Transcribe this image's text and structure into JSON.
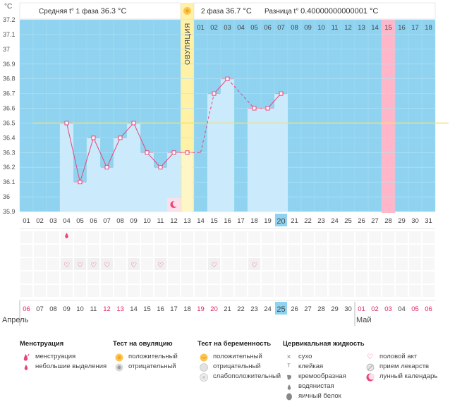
{
  "axis_unit": "°C",
  "header": {
    "phase1_label": "Средняя t° 1 фаза",
    "phase1_value": "36.3 °C",
    "phase2_label": "2 фаза",
    "phase2_value": "36.7 °C",
    "diff_label": "Разница t°",
    "diff_value": "0.40000000000001 °C"
  },
  "ovulation_label": "ОВУЛЯЦИЯ",
  "chart_data": {
    "type": "line",
    "ylabel": "°C",
    "ylim": [
      35.9,
      37.2
    ],
    "yticks": [
      "35.9",
      "36",
      "36.1",
      "36.2",
      "36.3",
      "36.4",
      "36.5",
      "36.6",
      "36.7",
      "36.8",
      "36.9",
      "37",
      "37.1",
      "37.2"
    ],
    "baseline": 36.5,
    "cycle_days": [
      "01",
      "02",
      "03",
      "04",
      "05",
      "06",
      "07",
      "08",
      "09",
      "10",
      "11",
      "12",
      "13",
      "14",
      "15",
      "16",
      "17",
      "18",
      "19",
      "20",
      "21",
      "22",
      "23",
      "24",
      "25",
      "26",
      "27",
      "28",
      "29",
      "30",
      "31"
    ],
    "phase2_days": [
      "01",
      "02",
      "03",
      "04",
      "05",
      "06",
      "07",
      "08",
      "09",
      "10",
      "11",
      "12",
      "13",
      "14",
      "15",
      "16",
      "17",
      "18"
    ],
    "highlight_cycle_day": "20",
    "ovulation_day": 13,
    "pink_day": 28,
    "temperatures": [
      null,
      null,
      null,
      36.5,
      36.1,
      36.4,
      36.2,
      36.4,
      36.5,
      36.3,
      36.2,
      36.3,
      36.3,
      null,
      36.7,
      36.8,
      null,
      36.6,
      36.6,
      36.7,
      null,
      null,
      null,
      null,
      null,
      null,
      null,
      null,
      null,
      null,
      null
    ],
    "dashed_segments": [
      [
        13,
        36.3,
        14,
        36.3
      ],
      [
        14,
        36.3,
        15,
        36.7
      ],
      [
        16,
        36.8,
        18,
        36.6
      ]
    ],
    "lunar_day": 12,
    "menstruation_small_day": 4,
    "intercourse_days": [
      4,
      5,
      6,
      7,
      9,
      11,
      15,
      18
    ],
    "dates": [
      "06",
      "07",
      "08",
      "09",
      "10",
      "11",
      "12",
      "13",
      "14",
      "15",
      "16",
      "17",
      "18",
      "19",
      "20",
      "21",
      "22",
      "23",
      "24",
      "25",
      "26",
      "27",
      "28",
      "29",
      "30",
      "01",
      "02",
      "03",
      "04",
      "05",
      "06"
    ],
    "red_dates_idx": [
      0,
      6,
      7,
      13,
      14,
      25,
      26,
      27,
      29,
      30
    ],
    "highlight_date": "25",
    "month_labels": [
      "Апрель",
      "Май"
    ]
  },
  "legend": {
    "menstruation": {
      "title": "Менструация",
      "items": [
        "менструация",
        "небольшие выделения"
      ]
    },
    "ovulation_test": {
      "title": "Тест на овуляцию",
      "items": [
        "положительный",
        "отрицательный"
      ]
    },
    "pregnancy_test": {
      "title": "Тест на беременность",
      "items": [
        "положительный",
        "отрицательный",
        "слабоположительный"
      ]
    },
    "cervical": {
      "title": "Цервикальная жидкость",
      "items": [
        "сухо",
        "клейкая",
        "кремообразная",
        "водянистая",
        "яичный белок"
      ]
    },
    "other": {
      "items": [
        "половой акт",
        "прием лекарств",
        "лунный календарь"
      ]
    }
  },
  "colors": {
    "sky": "#8fd3f0",
    "bar": "#cbeafb",
    "line": "#e8457a",
    "ovulation": "#fff1a6",
    "pink": "#ffb6c8",
    "baseline": "#efe27a",
    "highlight": "#8fd3f0",
    "red_text": "#e0245e"
  }
}
